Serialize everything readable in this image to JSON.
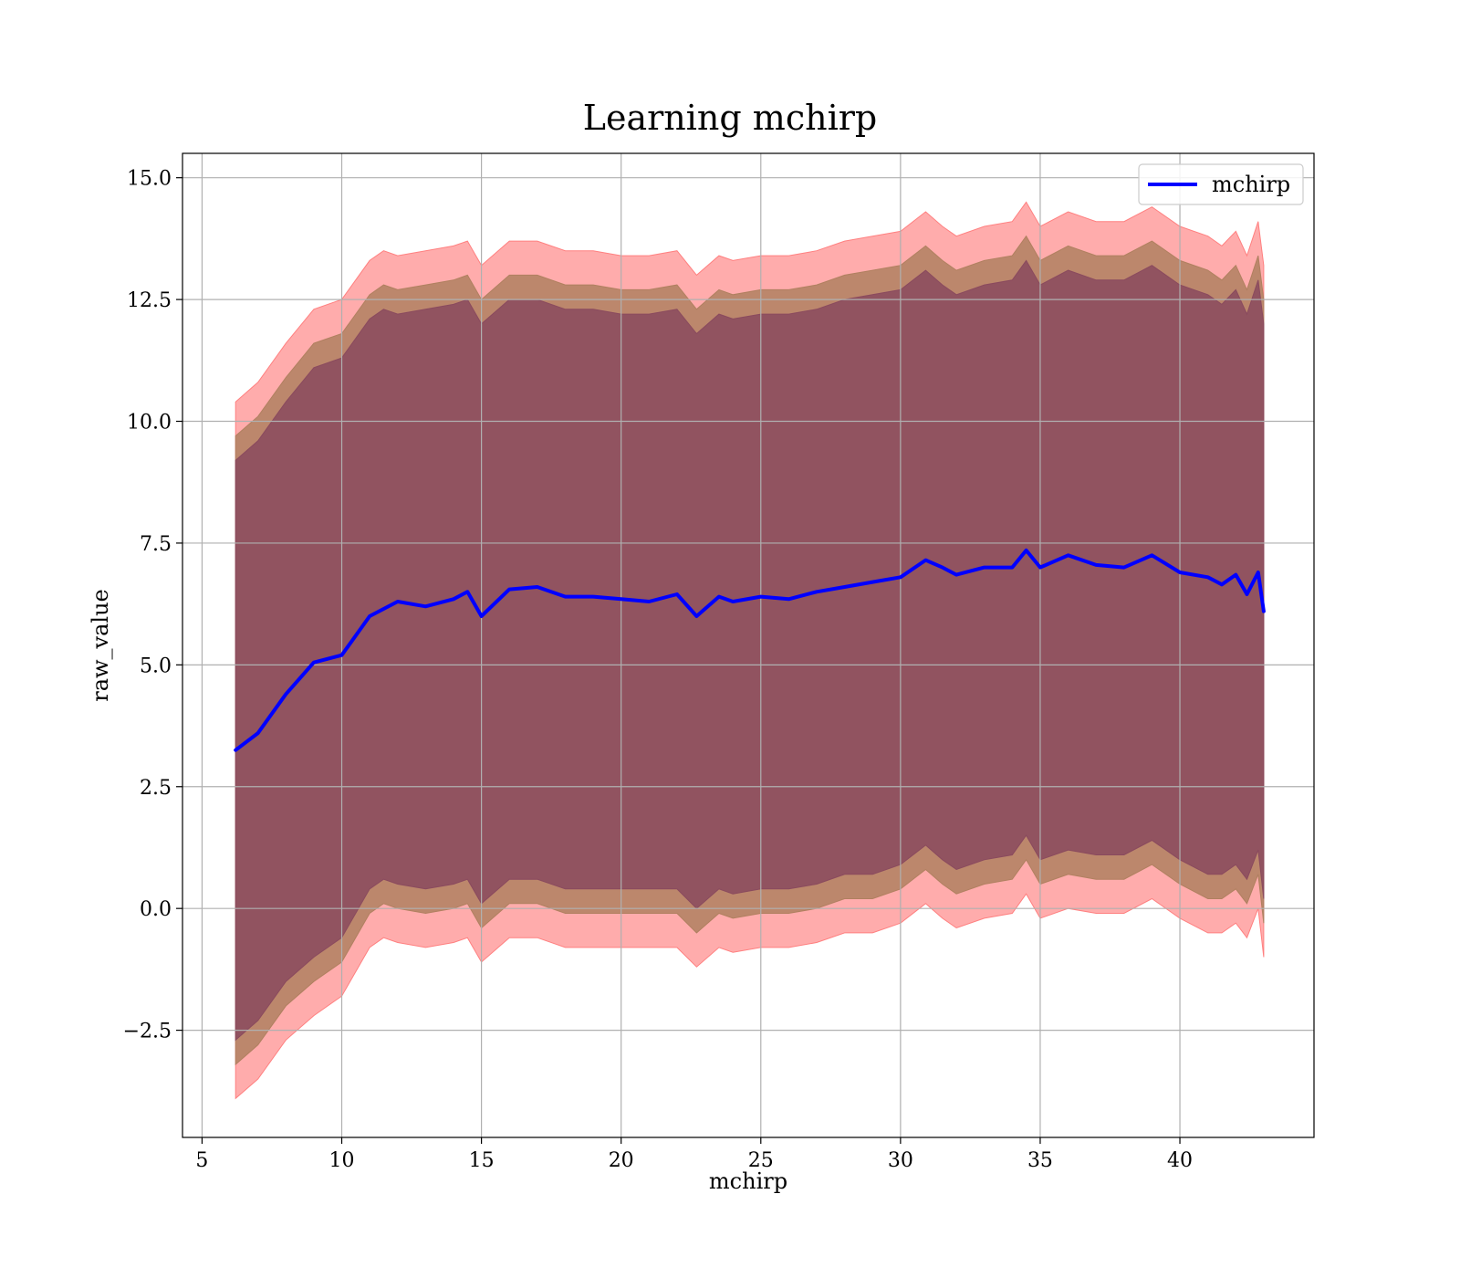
{
  "chart_data": {
    "type": "line",
    "title": "Learning mchirp",
    "xlabel": "mchirp",
    "ylabel": "raw_value",
    "xlim": [
      4.3,
      44.8
    ],
    "ylim": [
      -4.7,
      15.5
    ],
    "xticks": [
      5,
      10,
      15,
      20,
      25,
      30,
      35,
      40
    ],
    "yticks": [
      -2.5,
      0.0,
      2.5,
      5.0,
      7.5,
      10.0,
      12.5,
      15.0
    ],
    "xtick_labels": [
      "5",
      "10",
      "15",
      "20",
      "25",
      "30",
      "35",
      "40"
    ],
    "ytick_labels": [
      "−2.5",
      "0.0",
      "2.5",
      "5.0",
      "7.5",
      "10.0",
      "12.5",
      "15.0"
    ],
    "grid": true,
    "legend_position": "top-right",
    "series": [
      {
        "name": "mchirp",
        "color": "#0000ff",
        "x": [
          6.2,
          7.0,
          8.0,
          9.0,
          10.0,
          11.0,
          12.0,
          13.0,
          14.0,
          14.5,
          15.0,
          16.0,
          17.0,
          18.0,
          19.0,
          20.0,
          21.0,
          22.0,
          22.7,
          23.5,
          24.0,
          25.0,
          26.0,
          27.0,
          28.0,
          29.0,
          30.0,
          30.9,
          31.5,
          32.0,
          33.0,
          34.0,
          34.5,
          35.0,
          36.0,
          37.0,
          38.0,
          39.0,
          40.0,
          41.0,
          41.5,
          42.0,
          42.4,
          42.8,
          43.0
        ],
        "y": [
          3.25,
          3.6,
          4.4,
          5.05,
          5.2,
          6.0,
          6.3,
          6.2,
          6.35,
          6.5,
          6.0,
          6.55,
          6.6,
          6.4,
          6.4,
          6.35,
          6.3,
          6.45,
          6.0,
          6.4,
          6.3,
          6.4,
          6.35,
          6.5,
          6.6,
          6.7,
          6.8,
          7.15,
          7.0,
          6.85,
          7.0,
          7.0,
          7.35,
          7.0,
          7.25,
          7.05,
          7.0,
          7.25,
          6.9,
          6.8,
          6.65,
          6.85,
          6.45,
          6.9,
          6.1
        ]
      }
    ],
    "bands": [
      {
        "color": "#ff8080",
        "x": [
          6.2,
          7.0,
          8.0,
          9.0,
          10.0,
          11.0,
          11.5,
          12.0,
          13.0,
          14.0,
          14.5,
          15.0,
          16.0,
          17.0,
          18.0,
          19.0,
          20.0,
          21.0,
          22.0,
          22.7,
          23.5,
          24.0,
          25.0,
          26.0,
          27.0,
          28.0,
          29.0,
          30.0,
          30.9,
          31.5,
          32.0,
          33.0,
          34.0,
          34.5,
          35.0,
          36.0,
          37.0,
          38.0,
          39.0,
          40.0,
          41.0,
          41.5,
          42.0,
          42.4,
          42.8,
          43.0
        ],
        "upper": [
          10.4,
          10.8,
          11.6,
          12.3,
          12.5,
          13.3,
          13.5,
          13.4,
          13.5,
          13.6,
          13.7,
          13.2,
          13.7,
          13.7,
          13.5,
          13.5,
          13.4,
          13.4,
          13.5,
          13.0,
          13.4,
          13.3,
          13.4,
          13.4,
          13.5,
          13.7,
          13.8,
          13.9,
          14.3,
          14.0,
          13.8,
          14.0,
          14.1,
          14.5,
          14.0,
          14.3,
          14.1,
          14.1,
          14.4,
          14.0,
          13.8,
          13.6,
          13.9,
          13.4,
          14.1,
          13.2
        ],
        "lower": [
          -3.9,
          -3.5,
          -2.7,
          -2.2,
          -1.8,
          -0.8,
          -0.6,
          -0.7,
          -0.8,
          -0.7,
          -0.6,
          -1.1,
          -0.6,
          -0.6,
          -0.8,
          -0.8,
          -0.8,
          -0.8,
          -0.8,
          -1.2,
          -0.8,
          -0.9,
          -0.8,
          -0.8,
          -0.7,
          -0.5,
          -0.5,
          -0.3,
          0.1,
          -0.2,
          -0.4,
          -0.2,
          -0.1,
          0.3,
          -0.2,
          0.0,
          -0.1,
          -0.1,
          0.2,
          -0.2,
          -0.5,
          -0.5,
          -0.3,
          -0.6,
          0.0,
          -1.0
        ]
      },
      {
        "color": "#b08060",
        "x": [
          6.2,
          7.0,
          8.0,
          9.0,
          10.0,
          11.0,
          11.5,
          12.0,
          13.0,
          14.0,
          14.5,
          15.0,
          16.0,
          17.0,
          18.0,
          19.0,
          20.0,
          21.0,
          22.0,
          22.7,
          23.5,
          24.0,
          25.0,
          26.0,
          27.0,
          28.0,
          29.0,
          30.0,
          30.9,
          31.5,
          32.0,
          33.0,
          34.0,
          34.5,
          35.0,
          36.0,
          37.0,
          38.0,
          39.0,
          40.0,
          41.0,
          41.5,
          42.0,
          42.4,
          42.8,
          43.0
        ],
        "upper": [
          9.7,
          10.1,
          10.9,
          11.6,
          11.8,
          12.6,
          12.8,
          12.7,
          12.8,
          12.9,
          13.0,
          12.5,
          13.0,
          13.0,
          12.8,
          12.8,
          12.7,
          12.7,
          12.8,
          12.3,
          12.7,
          12.6,
          12.7,
          12.7,
          12.8,
          13.0,
          13.1,
          13.2,
          13.6,
          13.3,
          13.1,
          13.3,
          13.4,
          13.8,
          13.3,
          13.6,
          13.4,
          13.4,
          13.7,
          13.3,
          13.1,
          12.9,
          13.2,
          12.7,
          13.4,
          12.5
        ],
        "lower": [
          -3.2,
          -2.8,
          -2.0,
          -1.5,
          -1.1,
          -0.1,
          0.1,
          0.0,
          -0.1,
          0.0,
          0.1,
          -0.4,
          0.1,
          0.1,
          -0.1,
          -0.1,
          -0.1,
          -0.1,
          -0.1,
          -0.5,
          -0.1,
          -0.2,
          -0.1,
          -0.1,
          0.0,
          0.2,
          0.2,
          0.4,
          0.8,
          0.5,
          0.3,
          0.5,
          0.6,
          1.0,
          0.5,
          0.7,
          0.6,
          0.6,
          0.9,
          0.5,
          0.2,
          0.2,
          0.4,
          0.1,
          0.7,
          -0.3
        ]
      },
      {
        "color": "#8a4a5e",
        "x": [
          6.2,
          7.0,
          8.0,
          9.0,
          10.0,
          11.0,
          11.5,
          12.0,
          13.0,
          14.0,
          14.5,
          15.0,
          16.0,
          17.0,
          18.0,
          19.0,
          20.0,
          21.0,
          22.0,
          22.7,
          23.5,
          24.0,
          25.0,
          26.0,
          27.0,
          28.0,
          29.0,
          30.0,
          30.9,
          31.5,
          32.0,
          33.0,
          34.0,
          34.5,
          35.0,
          36.0,
          37.0,
          38.0,
          39.0,
          40.0,
          41.0,
          41.5,
          42.0,
          42.4,
          42.8,
          43.0
        ],
        "upper": [
          9.2,
          9.6,
          10.4,
          11.1,
          11.3,
          12.1,
          12.3,
          12.2,
          12.3,
          12.4,
          12.5,
          12.0,
          12.5,
          12.5,
          12.3,
          12.3,
          12.2,
          12.2,
          12.3,
          11.8,
          12.2,
          12.1,
          12.2,
          12.2,
          12.3,
          12.5,
          12.6,
          12.7,
          13.1,
          12.8,
          12.6,
          12.8,
          12.9,
          13.3,
          12.8,
          13.1,
          12.9,
          12.9,
          13.2,
          12.8,
          12.6,
          12.4,
          12.7,
          12.2,
          12.9,
          12.0
        ],
        "lower": [
          -2.7,
          -2.3,
          -1.5,
          -1.0,
          -0.6,
          0.4,
          0.6,
          0.5,
          0.4,
          0.5,
          0.6,
          0.1,
          0.6,
          0.6,
          0.4,
          0.4,
          0.4,
          0.4,
          0.4,
          0.0,
          0.4,
          0.3,
          0.4,
          0.4,
          0.5,
          0.7,
          0.7,
          0.9,
          1.3,
          1.0,
          0.8,
          1.0,
          1.1,
          1.5,
          1.0,
          1.2,
          1.1,
          1.1,
          1.4,
          1.0,
          0.7,
          0.7,
          0.9,
          0.6,
          1.2,
          0.2
        ]
      }
    ]
  }
}
